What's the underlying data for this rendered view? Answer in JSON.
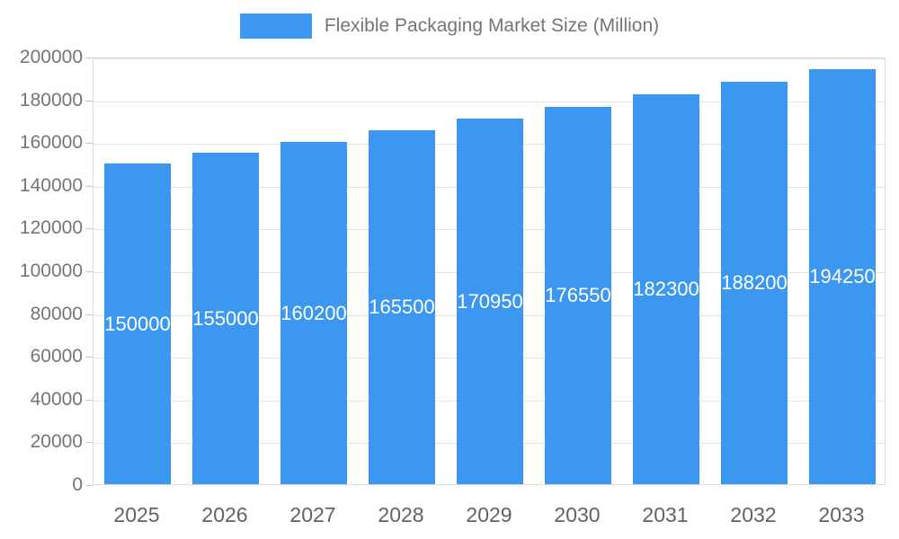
{
  "chart_data": {
    "type": "bar",
    "title": "Flexible Packaging Market Size (Million)",
    "categories": [
      "2025",
      "2026",
      "2027",
      "2028",
      "2029",
      "2030",
      "2031",
      "2032",
      "2033"
    ],
    "values": [
      150000,
      155000,
      160200,
      165500,
      170950,
      176550,
      182300,
      188200,
      194250
    ],
    "value_labels": [
      "150000",
      "155000",
      "160200",
      "165500",
      "170950",
      "176550",
      "182300",
      "188200",
      "194250"
    ],
    "xlabel": "",
    "ylabel": "",
    "ylim": [
      0,
      200000
    ],
    "ytick_step": 20000,
    "ytick_labels": [
      "0",
      "20000",
      "40000",
      "60000",
      "80000",
      "100000",
      "120000",
      "140000",
      "160000",
      "180000",
      "200000"
    ],
    "grid": true,
    "legend_position": "top",
    "bar_color": "#3B97F0",
    "bar_label_color": "#ffffff"
  },
  "colors": {
    "axis_text": "#757575",
    "category_text": "#5f6368",
    "grid_line": "#e3e3e3",
    "plot_border": "#dcdcdc",
    "tick_mark": "#c9c9c9"
  },
  "legend": {
    "label": "Flexible Packaging Market Size (Million)"
  }
}
